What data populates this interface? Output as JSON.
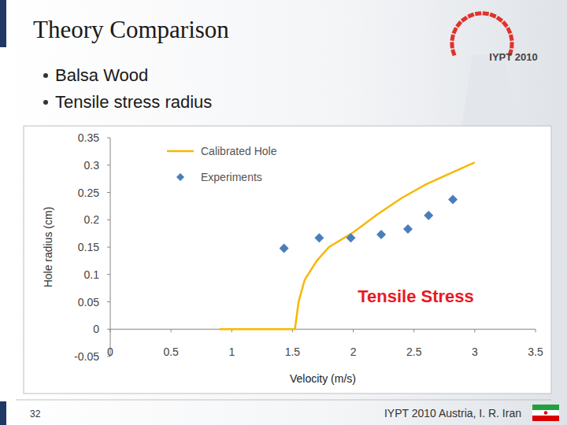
{
  "slide": {
    "title": "Theory Comparison",
    "bullets": [
      "Balsa Wood",
      "Tensile stress radius"
    ],
    "page_number": "32",
    "footer": "IYPT 2010 Austria, I. R. Iran",
    "logo": "IYPT 2010"
  },
  "chart_data": {
    "type": "line",
    "x_label": "Velocity (m/s)",
    "y_label": "Hole radius (cm)",
    "annotations": [
      "Tensile Stress"
    ],
    "xlim": [
      0,
      3.5
    ],
    "xticks": [
      0,
      0.5,
      1,
      1.5,
      2,
      2.5,
      3,
      3.5
    ],
    "ylim": [
      -0.05,
      0.35
    ],
    "yticks": [
      -0.05,
      0,
      0.05,
      0.1,
      0.15,
      0.2,
      0.25,
      0.3,
      0.35
    ],
    "grid": false,
    "legend": "top-left",
    "series": [
      {
        "name": "Calibrated Hole",
        "type": "line",
        "color": "#f7b800",
        "line_style": "solid",
        "x": [
          0.9,
          1.52,
          1.55,
          1.6,
          1.7,
          1.8,
          2.0,
          2.2,
          2.4,
          2.6,
          2.8,
          3.0
        ],
        "values": [
          0,
          0,
          0.05,
          0.09,
          0.125,
          0.15,
          0.177,
          0.21,
          0.24,
          0.265,
          0.285,
          0.305
        ]
      },
      {
        "name": "Experiments",
        "type": "scatter",
        "color": "#4a7ebb",
        "marker": "diamond",
        "x": [
          1.43,
          1.72,
          1.98,
          2.23,
          2.45,
          2.62,
          2.82
        ],
        "values": [
          0.148,
          0.167,
          0.167,
          0.173,
          0.183,
          0.208,
          0.237
        ]
      }
    ]
  }
}
